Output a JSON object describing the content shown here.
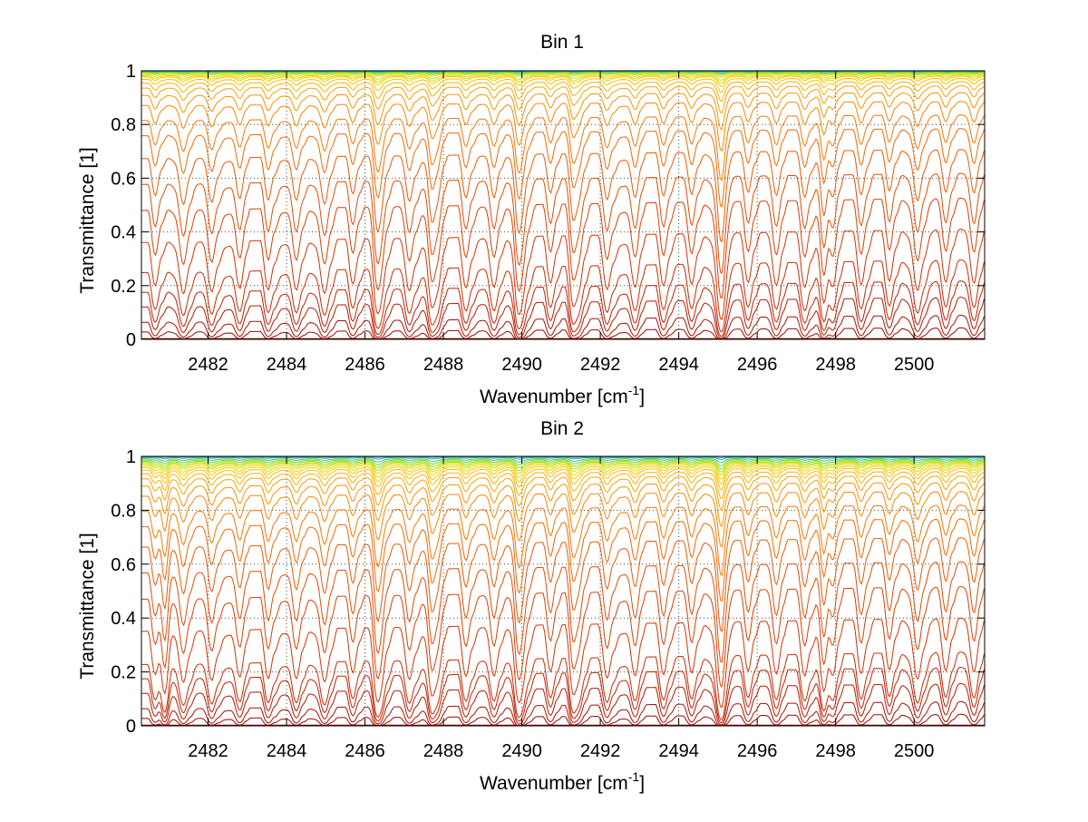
{
  "chart_data": [
    {
      "type": "line",
      "title": "Bin 1",
      "xlabel": "Wavenumber [cm",
      "xlabel_sup": "-1",
      "xlabel_end": "]",
      "ylabel": "Transmittance [1]",
      "xlim": [
        2480.3,
        2501.8
      ],
      "ylim": [
        0,
        1
      ],
      "x_ticks": [
        "2482",
        "2484",
        "2486",
        "2488",
        "2490",
        "2492",
        "2494",
        "2496",
        "2498",
        "2500"
      ],
      "y_ticks": [
        "0",
        "0.2",
        "0.4",
        "0.6",
        "0.8",
        "1"
      ],
      "grid": "dotted",
      "line_spacing_cm-1": 0.72,
      "strong_line_wavenumbers": [
        2486.3,
        2487.7,
        2489.9,
        2491.3,
        2495.1,
        2497.7
      ],
      "series_end_transmittance": [
        0.0,
        0.02,
        0.05,
        0.1,
        0.15,
        0.22,
        0.33,
        0.45,
        0.55,
        0.65,
        0.74,
        0.8,
        0.86,
        0.9,
        0.93,
        0.95,
        0.965,
        0.975,
        0.98,
        0.985,
        0.99,
        0.993,
        0.995,
        0.997,
        0.998,
        0.999
      ],
      "series_colors": [
        "#8b0000",
        "#b01000",
        "#cc2200",
        "#e03a00",
        "#f05800",
        "#ff7a00",
        "#ff9a00",
        "#ffbb00",
        "#e8d800",
        "#aee000",
        "#55cc55",
        "#1a9ad6"
      ]
    },
    {
      "type": "line",
      "title": "Bin 2",
      "xlabel": "Wavenumber [cm",
      "xlabel_sup": "-1",
      "xlabel_end": "]",
      "ylabel": "Transmittance [1]",
      "xlim": [
        2480.3,
        2501.8
      ],
      "ylim": [
        0,
        1
      ],
      "x_ticks": [
        "2482",
        "2484",
        "2486",
        "2488",
        "2490",
        "2492",
        "2494",
        "2496",
        "2498",
        "2500"
      ],
      "y_ticks": [
        "0",
        "0.2",
        "0.4",
        "0.6",
        "0.8",
        "1"
      ],
      "grid": "dotted",
      "line_spacing_cm-1": 0.72,
      "strong_line_wavenumbers": [
        2480.9,
        2486.3,
        2487.7,
        2489.9,
        2491.3,
        2495.1,
        2497.7
      ],
      "series_end_transmittance": [
        0.0,
        0.02,
        0.05,
        0.1,
        0.15,
        0.2,
        0.32,
        0.44,
        0.54,
        0.64,
        0.72,
        0.78,
        0.84,
        0.88,
        0.91,
        0.93,
        0.945,
        0.955,
        0.963,
        0.97,
        0.975,
        0.98,
        0.985,
        0.99,
        0.995,
        0.998
      ],
      "series_colors": [
        "#8b0000",
        "#b01000",
        "#cc2200",
        "#e03a00",
        "#f05800",
        "#ff7a00",
        "#ff9a00",
        "#ffbb00",
        "#e8d800",
        "#aee000",
        "#55cc55",
        "#1a9ad6"
      ]
    }
  ]
}
